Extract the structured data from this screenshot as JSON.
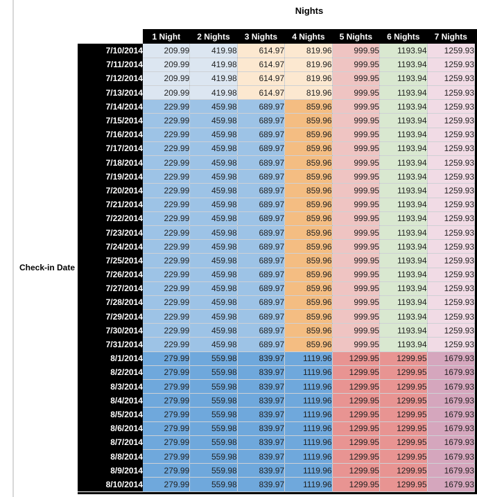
{
  "title": "Nights",
  "row_axis_label": "Check-in Date",
  "palette": {
    "light_blue": "#dce6f1",
    "mid_blue": "#9dc3e6",
    "dark_blue": "#6fa8dc",
    "light_orange": "#fce8d0",
    "mid_orange": "#f4bd82",
    "light_red": "#efc4c2",
    "mid_red": "#e89492",
    "light_green": "#d9e8d0",
    "light_pink": "#f1dbe5",
    "mid_pink": "#d5a6bd",
    "header_bg": "#000000",
    "header_text": "#ffffff",
    "value_text": "#1f1f1f"
  },
  "chart_data": {
    "type": "table",
    "title": "Nights",
    "row_label": "Check-in Date",
    "columns": [
      "1 Night",
      "2 Nights",
      "3 Nights",
      "4 Nights",
      "5 Nights",
      "6 Nights",
      "7 Nights"
    ],
    "groups": {
      "early_july": {
        "cell_colors": [
          "light_blue",
          "light_blue",
          "light_orange",
          "light_orange",
          "light_red",
          "light_green",
          "light_pink"
        ]
      },
      "mid_july": {
        "cell_colors": [
          "mid_blue",
          "mid_blue",
          "mid_blue",
          "mid_orange",
          "light_red",
          "light_green",
          "light_pink"
        ]
      },
      "august": {
        "cell_colors": [
          "dark_blue",
          "dark_blue",
          "dark_blue",
          "dark_blue",
          "mid_red",
          "mid_red",
          "mid_pink"
        ]
      }
    },
    "rows": [
      {
        "date": "7/10/2014",
        "group": "early_july",
        "values": [
          "209.99",
          "419.98",
          "614.97",
          "819.96",
          "999.95",
          "1193.94",
          "1259.93"
        ]
      },
      {
        "date": "7/11/2014",
        "group": "early_july",
        "values": [
          "209.99",
          "419.98",
          "614.97",
          "819.96",
          "999.95",
          "1193.94",
          "1259.93"
        ]
      },
      {
        "date": "7/12/2014",
        "group": "early_july",
        "values": [
          "209.99",
          "419.98",
          "614.97",
          "819.96",
          "999.95",
          "1193.94",
          "1259.93"
        ]
      },
      {
        "date": "7/13/2014",
        "group": "early_july",
        "values": [
          "209.99",
          "419.98",
          "614.97",
          "819.96",
          "999.95",
          "1193.94",
          "1259.93"
        ]
      },
      {
        "date": "7/14/2014",
        "group": "mid_july",
        "values": [
          "229.99",
          "459.98",
          "689.97",
          "859.96",
          "999.95",
          "1193.94",
          "1259.93"
        ]
      },
      {
        "date": "7/15/2014",
        "group": "mid_july",
        "values": [
          "229.99",
          "459.98",
          "689.97",
          "859.96",
          "999.95",
          "1193.94",
          "1259.93"
        ]
      },
      {
        "date": "7/16/2014",
        "group": "mid_july",
        "values": [
          "229.99",
          "459.98",
          "689.97",
          "859.96",
          "999.95",
          "1193.94",
          "1259.93"
        ]
      },
      {
        "date": "7/17/2014",
        "group": "mid_july",
        "values": [
          "229.99",
          "459.98",
          "689.97",
          "859.96",
          "999.95",
          "1193.94",
          "1259.93"
        ]
      },
      {
        "date": "7/18/2014",
        "group": "mid_july",
        "values": [
          "229.99",
          "459.98",
          "689.97",
          "859.96",
          "999.95",
          "1193.94",
          "1259.93"
        ]
      },
      {
        "date": "7/19/2014",
        "group": "mid_july",
        "values": [
          "229.99",
          "459.98",
          "689.97",
          "859.96",
          "999.95",
          "1193.94",
          "1259.93"
        ]
      },
      {
        "date": "7/20/2014",
        "group": "mid_july",
        "values": [
          "229.99",
          "459.98",
          "689.97",
          "859.96",
          "999.95",
          "1193.94",
          "1259.93"
        ]
      },
      {
        "date": "7/21/2014",
        "group": "mid_july",
        "values": [
          "229.99",
          "459.98",
          "689.97",
          "859.96",
          "999.95",
          "1193.94",
          "1259.93"
        ]
      },
      {
        "date": "7/22/2014",
        "group": "mid_july",
        "values": [
          "229.99",
          "459.98",
          "689.97",
          "859.96",
          "999.95",
          "1193.94",
          "1259.93"
        ]
      },
      {
        "date": "7/23/2014",
        "group": "mid_july",
        "values": [
          "229.99",
          "459.98",
          "689.97",
          "859.96",
          "999.95",
          "1193.94",
          "1259.93"
        ]
      },
      {
        "date": "7/24/2014",
        "group": "mid_july",
        "values": [
          "229.99",
          "459.98",
          "689.97",
          "859.96",
          "999.95",
          "1193.94",
          "1259.93"
        ]
      },
      {
        "date": "7/25/2014",
        "group": "mid_july",
        "values": [
          "229.99",
          "459.98",
          "689.97",
          "859.96",
          "999.95",
          "1193.94",
          "1259.93"
        ]
      },
      {
        "date": "7/26/2014",
        "group": "mid_july",
        "values": [
          "229.99",
          "459.98",
          "689.97",
          "859.96",
          "999.95",
          "1193.94",
          "1259.93"
        ]
      },
      {
        "date": "7/27/2014",
        "group": "mid_july",
        "values": [
          "229.99",
          "459.98",
          "689.97",
          "859.96",
          "999.95",
          "1193.94",
          "1259.93"
        ]
      },
      {
        "date": "7/28/2014",
        "group": "mid_july",
        "values": [
          "229.99",
          "459.98",
          "689.97",
          "859.96",
          "999.95",
          "1193.94",
          "1259.93"
        ]
      },
      {
        "date": "7/29/2014",
        "group": "mid_july",
        "values": [
          "229.99",
          "459.98",
          "689.97",
          "859.96",
          "999.95",
          "1193.94",
          "1259.93"
        ]
      },
      {
        "date": "7/30/2014",
        "group": "mid_july",
        "values": [
          "229.99",
          "459.98",
          "689.97",
          "859.96",
          "999.95",
          "1193.94",
          "1259.93"
        ]
      },
      {
        "date": "7/31/2014",
        "group": "mid_july",
        "values": [
          "229.99",
          "459.98",
          "689.97",
          "859.96",
          "999.95",
          "1193.94",
          "1259.93"
        ]
      },
      {
        "date": "8/1/2014",
        "group": "august",
        "values": [
          "279.99",
          "559.98",
          "839.97",
          "1119.96",
          "1299.95",
          "1299.95",
          "1679.93"
        ]
      },
      {
        "date": "8/2/2014",
        "group": "august",
        "values": [
          "279.99",
          "559.98",
          "839.97",
          "1119.96",
          "1299.95",
          "1299.95",
          "1679.93"
        ]
      },
      {
        "date": "8/3/2014",
        "group": "august",
        "values": [
          "279.99",
          "559.98",
          "839.97",
          "1119.96",
          "1299.95",
          "1299.95",
          "1679.93"
        ]
      },
      {
        "date": "8/4/2014",
        "group": "august",
        "values": [
          "279.99",
          "559.98",
          "839.97",
          "1119.96",
          "1299.95",
          "1299.95",
          "1679.93"
        ]
      },
      {
        "date": "8/5/2014",
        "group": "august",
        "values": [
          "279.99",
          "559.98",
          "839.97",
          "1119.96",
          "1299.95",
          "1299.95",
          "1679.93"
        ]
      },
      {
        "date": "8/6/2014",
        "group": "august",
        "values": [
          "279.99",
          "559.98",
          "839.97",
          "1119.96",
          "1299.95",
          "1299.95",
          "1679.93"
        ]
      },
      {
        "date": "8/7/2014",
        "group": "august",
        "values": [
          "279.99",
          "559.98",
          "839.97",
          "1119.96",
          "1299.95",
          "1299.95",
          "1679.93"
        ]
      },
      {
        "date": "8/8/2014",
        "group": "august",
        "values": [
          "279.99",
          "559.98",
          "839.97",
          "1119.96",
          "1299.95",
          "1299.95",
          "1679.93"
        ]
      },
      {
        "date": "8/9/2014",
        "group": "august",
        "values": [
          "279.99",
          "559.98",
          "839.97",
          "1119.96",
          "1299.95",
          "1299.95",
          "1679.93"
        ]
      },
      {
        "date": "8/10/2014",
        "group": "august",
        "values": [
          "279.99",
          "559.98",
          "839.97",
          "1119.96",
          "1299.95",
          "1299.95",
          "1679.93"
        ]
      }
    ]
  }
}
